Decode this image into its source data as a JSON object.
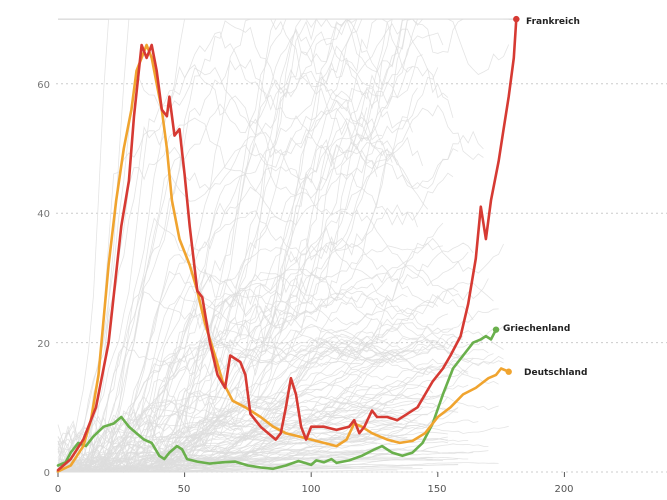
{
  "chart_data": {
    "type": "line",
    "title": "",
    "xlabel": "",
    "ylabel": "",
    "xlim": [
      0,
      240
    ],
    "ylim": [
      0,
      70
    ],
    "x_ticks": [
      "0",
      "50",
      "100",
      "150",
      "200"
    ],
    "y_ticks": [
      "0",
      "20",
      "40",
      "60"
    ],
    "grid": "horizontal dotted",
    "background_series": "many grey lines for other countries (unlabelled)",
    "series": [
      {
        "name": "Frankreich",
        "color": "#d63a33",
        "points": [
          [
            0,
            0.3
          ],
          [
            5,
            2
          ],
          [
            10,
            5
          ],
          [
            15,
            10
          ],
          [
            20,
            20
          ],
          [
            25,
            38
          ],
          [
            28,
            45
          ],
          [
            30,
            55
          ],
          [
            33,
            66
          ],
          [
            35,
            64
          ],
          [
            37,
            66
          ],
          [
            39,
            62
          ],
          [
            41,
            56
          ],
          [
            43,
            55
          ],
          [
            44,
            58
          ],
          [
            46,
            52
          ],
          [
            48,
            53
          ],
          [
            50,
            46
          ],
          [
            52,
            38
          ],
          [
            55,
            28
          ],
          [
            57,
            27
          ],
          [
            60,
            20
          ],
          [
            63,
            15
          ],
          [
            66,
            13
          ],
          [
            68,
            18
          ],
          [
            72,
            17
          ],
          [
            74,
            15
          ],
          [
            76,
            9
          ],
          [
            80,
            7
          ],
          [
            83,
            6
          ],
          [
            86,
            5
          ],
          [
            88,
            6
          ],
          [
            90,
            10
          ],
          [
            92,
            14.5
          ],
          [
            94,
            12
          ],
          [
            96,
            7
          ],
          [
            98,
            5
          ],
          [
            100,
            7
          ],
          [
            105,
            7
          ],
          [
            110,
            6.5
          ],
          [
            115,
            7
          ],
          [
            117,
            8
          ],
          [
            119,
            6
          ],
          [
            121,
            7
          ],
          [
            124,
            9.5
          ],
          [
            126,
            8.5
          ],
          [
            130,
            8.5
          ],
          [
            134,
            8
          ],
          [
            138,
            9
          ],
          [
            142,
            10
          ],
          [
            145,
            12
          ],
          [
            148,
            14
          ],
          [
            152,
            16
          ],
          [
            155,
            18
          ],
          [
            159,
            21
          ],
          [
            162,
            26
          ],
          [
            165,
            33
          ],
          [
            167,
            41
          ],
          [
            169,
            36
          ],
          [
            171,
            42
          ],
          [
            174,
            48
          ],
          [
            176,
            53
          ],
          [
            178,
            58
          ],
          [
            180,
            64
          ],
          [
            181,
            70
          ]
        ]
      },
      {
        "name": "Deutschland",
        "color": "#f0a42f",
        "points": [
          [
            0,
            0.1
          ],
          [
            5,
            1
          ],
          [
            10,
            4
          ],
          [
            13,
            8
          ],
          [
            16,
            15
          ],
          [
            20,
            32
          ],
          [
            23,
            42
          ],
          [
            26,
            50
          ],
          [
            29,
            56
          ],
          [
            31,
            62
          ],
          [
            33,
            64
          ],
          [
            35,
            66
          ],
          [
            37,
            64
          ],
          [
            39,
            60
          ],
          [
            41,
            56
          ],
          [
            43,
            50
          ],
          [
            45,
            42
          ],
          [
            48,
            36
          ],
          [
            52,
            32
          ],
          [
            55,
            28
          ],
          [
            58,
            23
          ],
          [
            62,
            18
          ],
          [
            65,
            14
          ],
          [
            69,
            11
          ],
          [
            74,
            10
          ],
          [
            80,
            8.5
          ],
          [
            85,
            7
          ],
          [
            90,
            6
          ],
          [
            95,
            5.5
          ],
          [
            100,
            5
          ],
          [
            105,
            4.5
          ],
          [
            110,
            4
          ],
          [
            114,
            5
          ],
          [
            117,
            7.5
          ],
          [
            120,
            7
          ],
          [
            124,
            6
          ],
          [
            130,
            5
          ],
          [
            135,
            4.5
          ],
          [
            140,
            4.8
          ],
          [
            145,
            6
          ],
          [
            150,
            8.5
          ],
          [
            155,
            10
          ],
          [
            160,
            12
          ],
          [
            165,
            13
          ],
          [
            170,
            14.5
          ],
          [
            173,
            15
          ],
          [
            175,
            16
          ],
          [
            178,
            15.5
          ]
        ]
      },
      {
        "name": "Griechenland",
        "color": "#6ab04c",
        "points": [
          [
            0,
            1
          ],
          [
            3,
            1.5
          ],
          [
            5,
            3
          ],
          [
            8,
            4.5
          ],
          [
            11,
            4
          ],
          [
            14,
            5.5
          ],
          [
            18,
            7
          ],
          [
            22,
            7.5
          ],
          [
            25,
            8.5
          ],
          [
            28,
            7
          ],
          [
            31,
            6
          ],
          [
            34,
            5
          ],
          [
            37,
            4.5
          ],
          [
            40,
            2.5
          ],
          [
            42,
            2
          ],
          [
            44,
            3
          ],
          [
            47,
            4
          ],
          [
            49,
            3.5
          ],
          [
            51,
            2
          ],
          [
            55,
            1.6
          ],
          [
            60,
            1.3
          ],
          [
            65,
            1.5
          ],
          [
            70,
            1.6
          ],
          [
            75,
            1
          ],
          [
            80,
            0.7
          ],
          [
            85,
            0.5
          ],
          [
            90,
            1
          ],
          [
            95,
            1.7
          ],
          [
            100,
            1.1
          ],
          [
            102,
            1.8
          ],
          [
            105,
            1.5
          ],
          [
            108,
            2
          ],
          [
            110,
            1.4
          ],
          [
            115,
            1.8
          ],
          [
            120,
            2.5
          ],
          [
            125,
            3.5
          ],
          [
            128,
            4
          ],
          [
            132,
            3
          ],
          [
            136,
            2.5
          ],
          [
            140,
            3
          ],
          [
            144,
            4.5
          ],
          [
            148,
            7.5
          ],
          [
            152,
            12
          ],
          [
            156,
            16
          ],
          [
            160,
            18
          ],
          [
            164,
            20
          ],
          [
            167,
            20.5
          ],
          [
            169,
            21
          ],
          [
            171,
            20.5
          ],
          [
            173,
            22
          ]
        ]
      }
    ]
  }
}
